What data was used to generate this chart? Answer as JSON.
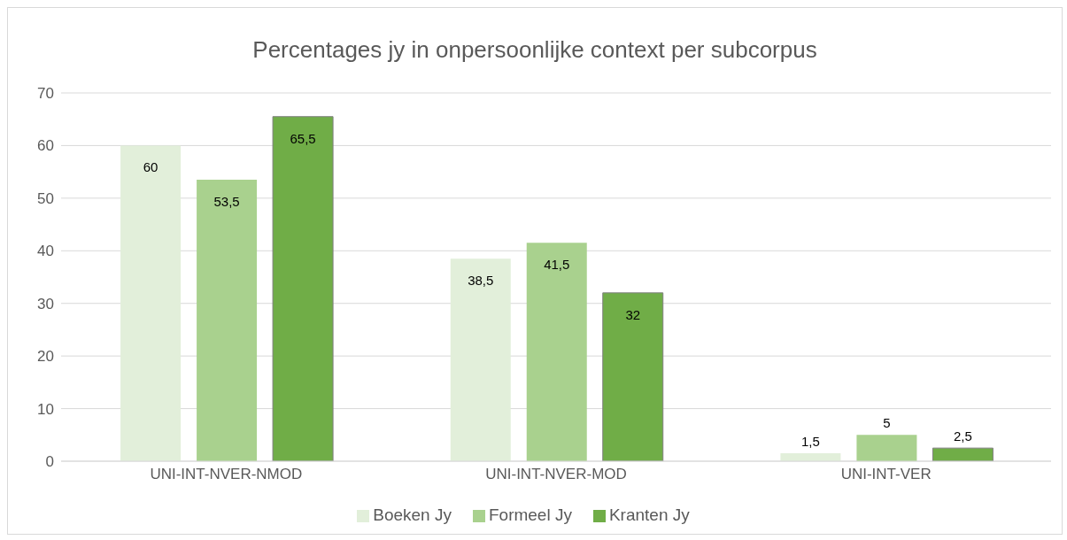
{
  "chart_data": {
    "type": "bar",
    "title": "Percentages jy in onpersoonlijke context per subcorpus",
    "categories": [
      "UNI-INT-NVER-NMOD",
      "UNI-INT-NVER-MOD",
      "UNI-INT-VER"
    ],
    "series": [
      {
        "name": "Boeken Jy",
        "color": "#e2efda",
        "values": [
          60,
          38.5,
          1.5
        ],
        "value_labels": [
          "60",
          "38,5",
          "1,5"
        ]
      },
      {
        "name": "Formeel Jy",
        "color": "#a9d18e",
        "values": [
          53.5,
          41.5,
          5
        ],
        "value_labels": [
          "53,5",
          "41,5",
          "5"
        ]
      },
      {
        "name": "Kranten Jy",
        "color": "#70ad47",
        "values": [
          65.5,
          32,
          2.5
        ],
        "value_labels": [
          "65,5",
          "32",
          "2,5"
        ]
      }
    ],
    "ylim": [
      0,
      70
    ],
    "yticks": [
      0,
      10,
      20,
      30,
      40,
      50,
      60,
      70
    ],
    "grid": "y",
    "legend": "bottom"
  }
}
